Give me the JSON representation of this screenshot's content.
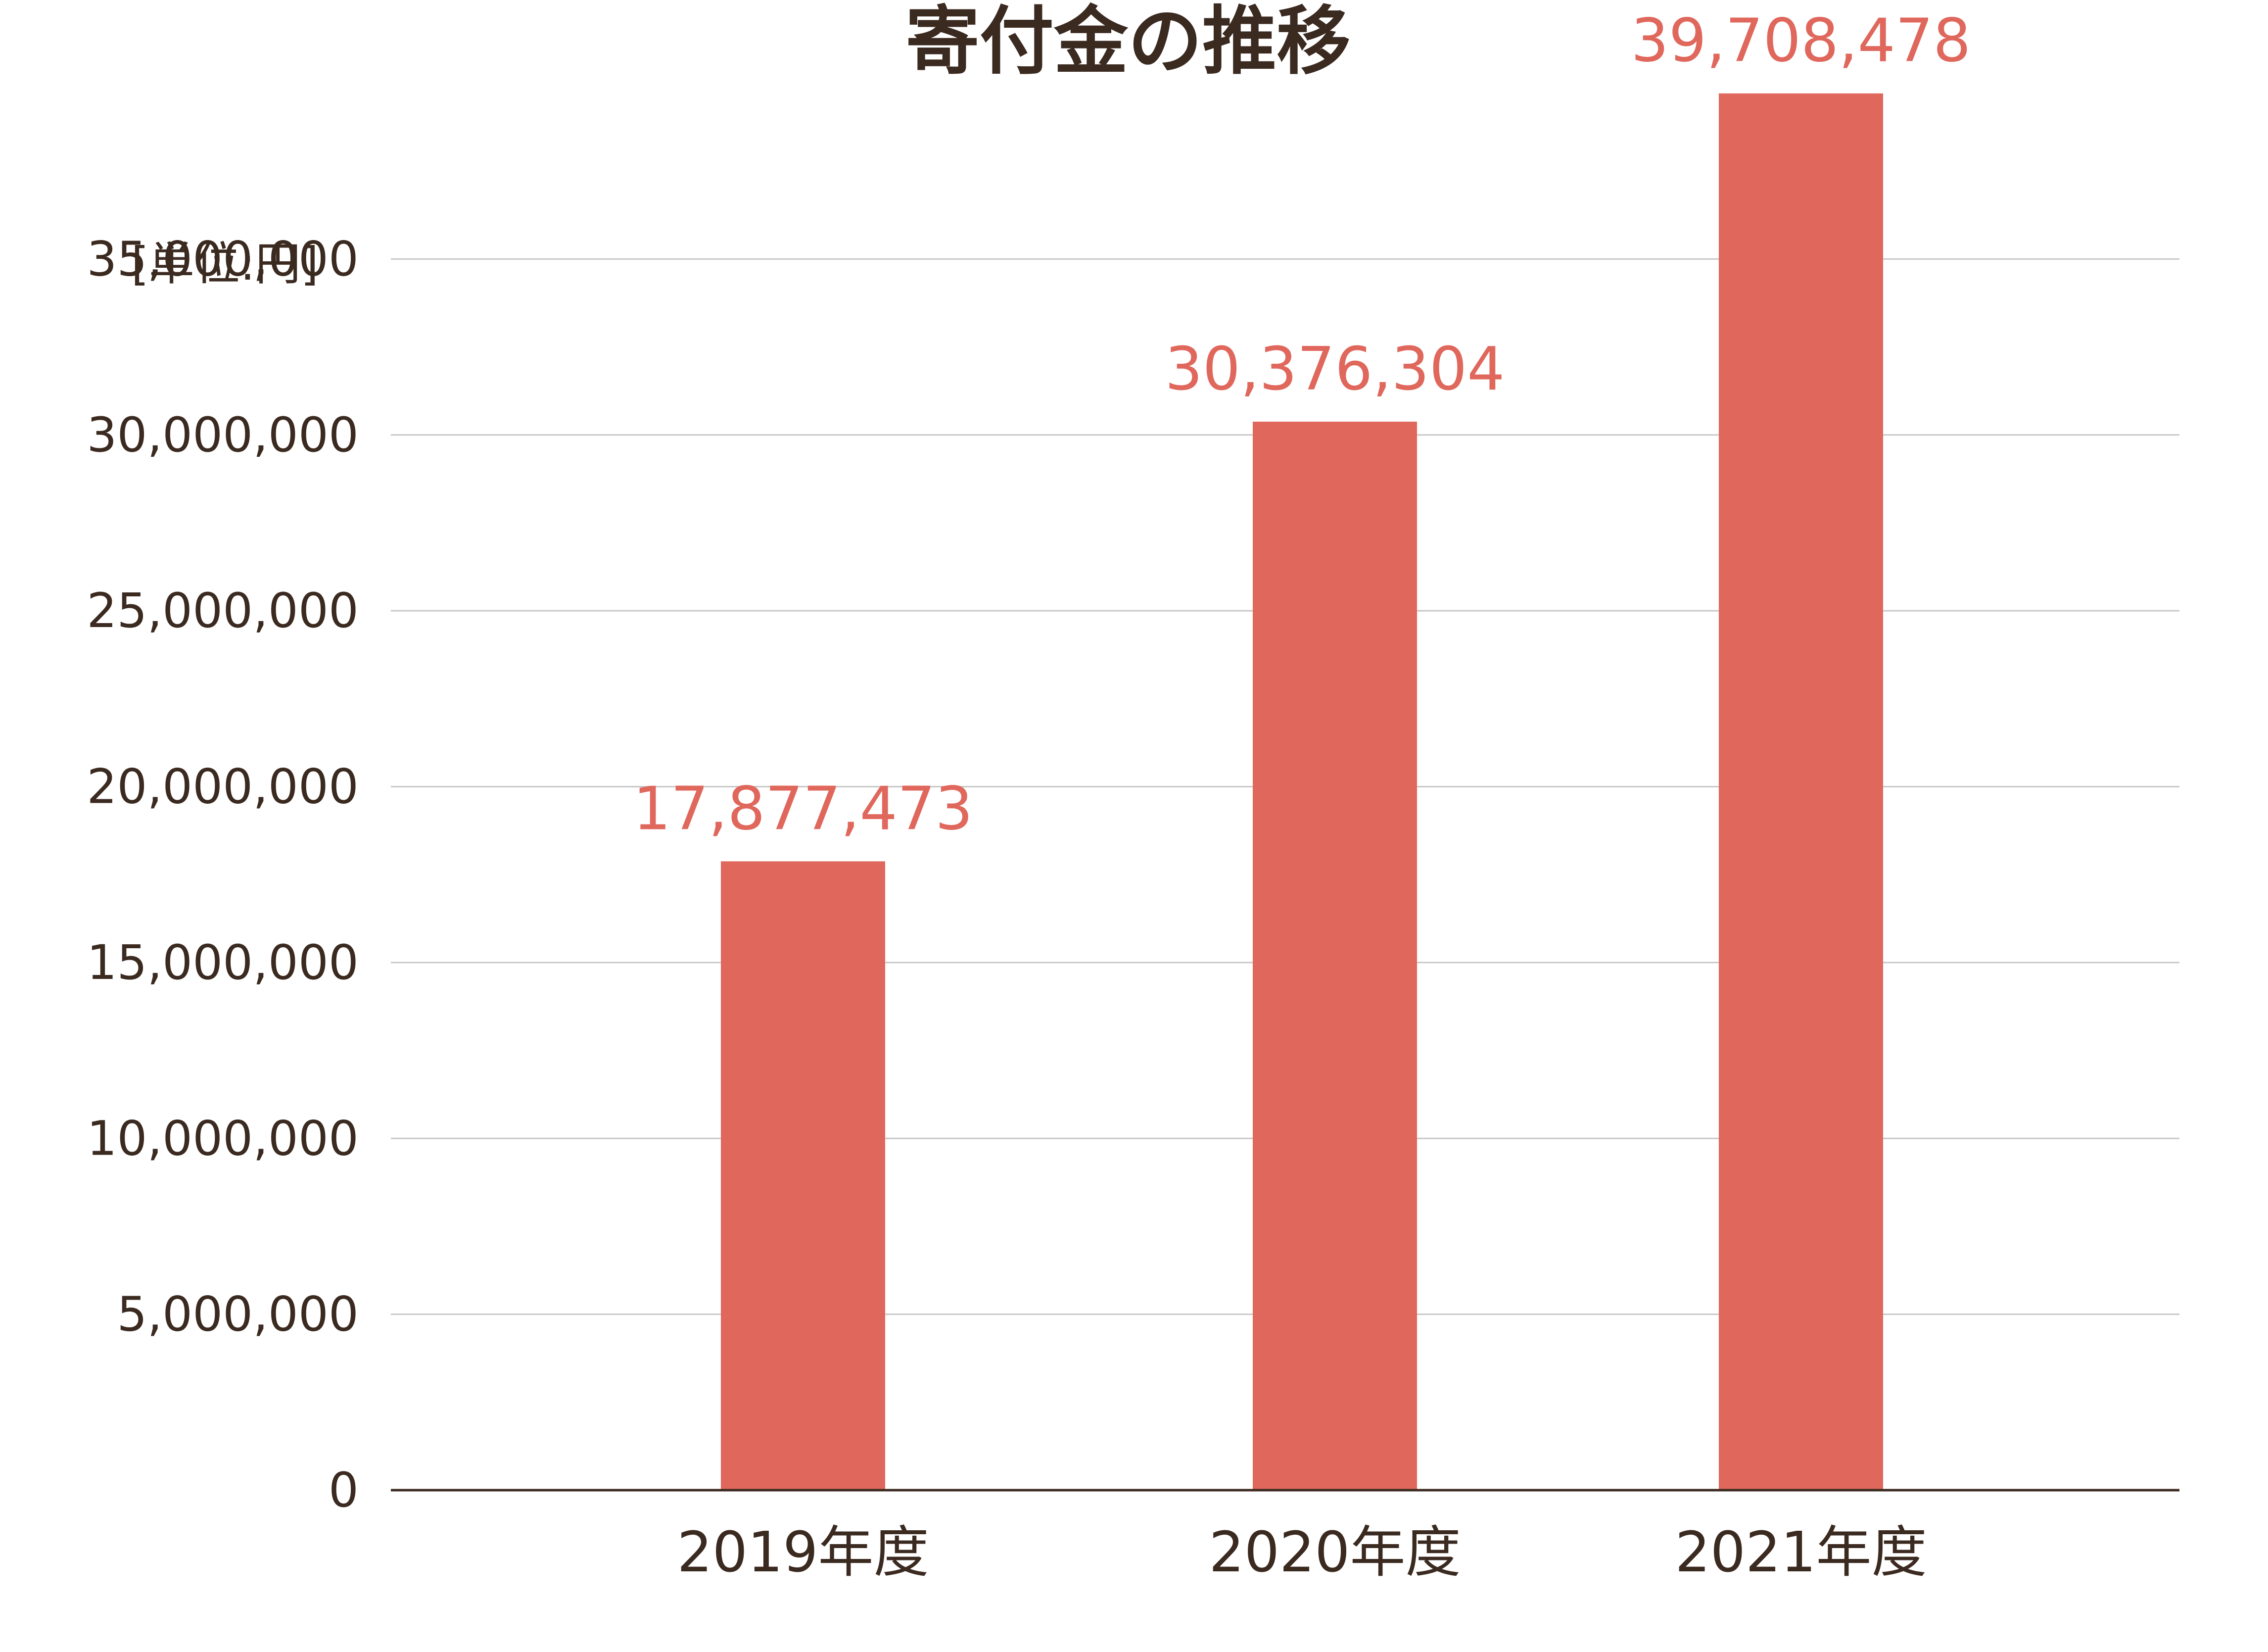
{
  "chart_data": {
    "type": "bar",
    "title": "寄付金の推移",
    "unit_label": "[単位:円]",
    "categories": [
      "2019年度",
      "2020年度",
      "2021年度"
    ],
    "values": [
      17877473,
      30376304,
      39708478
    ],
    "data_labels": [
      "17,877,473",
      "30,376,304",
      "39,708,478"
    ],
    "ylim": [
      0,
      40000000
    ],
    "yticks": [
      0,
      5000000,
      10000000,
      15000000,
      20000000,
      25000000,
      30000000,
      35000000
    ],
    "ytick_labels": [
      "0",
      "5,000,000",
      "10,000,000",
      "15,000,000",
      "20,000,000",
      "25,000,000",
      "30,000,000",
      "35,000,000"
    ],
    "grid": true,
    "legend": "none",
    "colors": {
      "bar": "#e0675c",
      "data_label": "#e0675c",
      "text": "#3b2a20",
      "grid": "#c8c8c8",
      "axis": "#3b2a20"
    }
  }
}
